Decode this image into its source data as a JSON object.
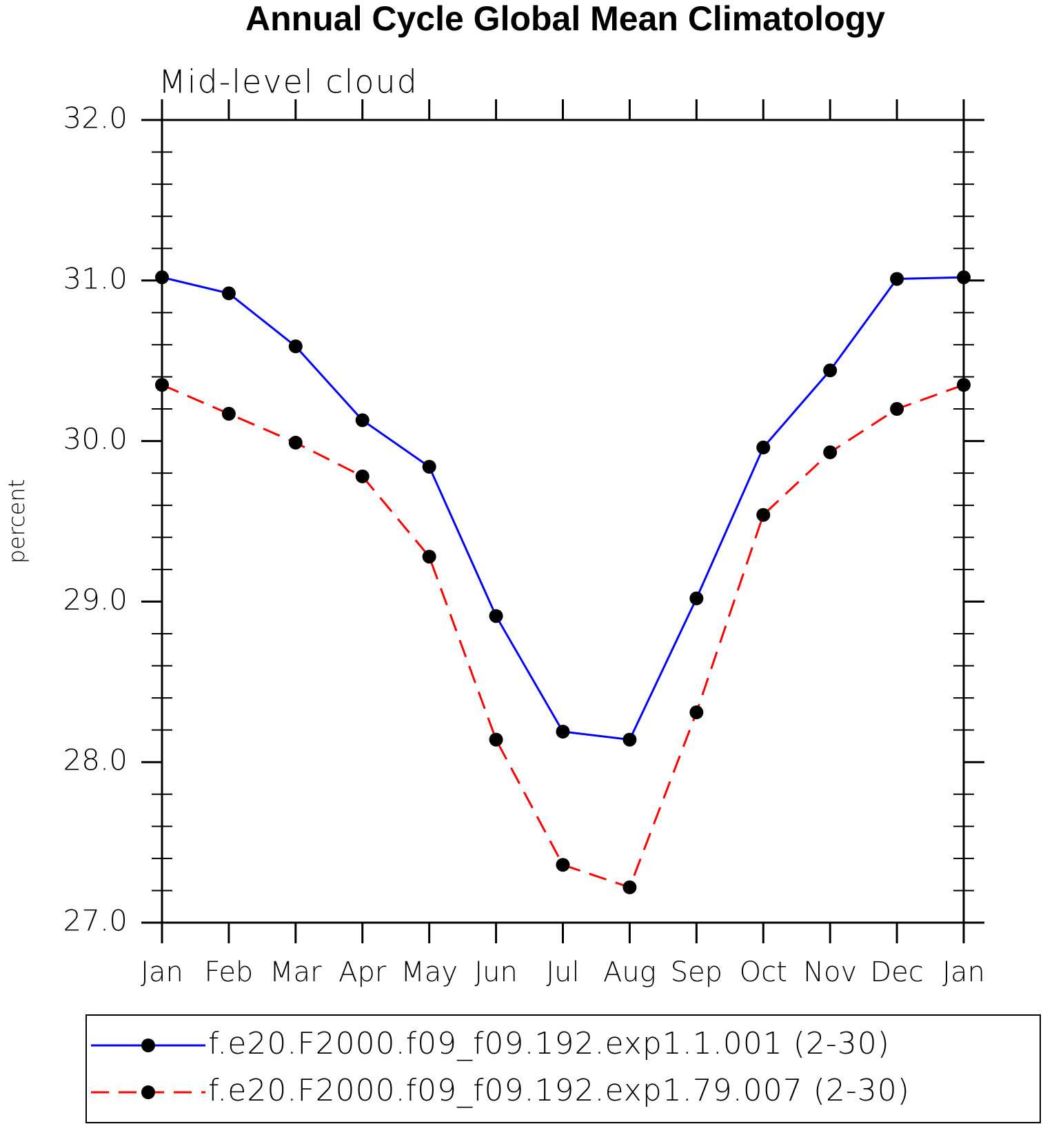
{
  "chart_data": {
    "type": "line",
    "title": "Annual Cycle Global Mean Climatology",
    "subtitle": "Mid-level cloud",
    "y_label": "percent",
    "categories": [
      "Jan",
      "Feb",
      "Mar",
      "Apr",
      "May",
      "Jun",
      "Jul",
      "Aug",
      "Sep",
      "Oct",
      "Nov",
      "Dec",
      "Jan"
    ],
    "series": [
      {
        "name": "f.e20.F2000.f09_f09.192.exp1.1.001 (2-30)",
        "color": "#0000ff",
        "dash": "solid",
        "values": [
          31.02,
          30.92,
          30.59,
          30.13,
          29.84,
          28.91,
          28.19,
          28.14,
          29.02,
          29.96,
          30.44,
          31.01,
          31.02
        ]
      },
      {
        "name": "f.e20.F2000.f09_f09.192.exp1.79.007 (2-30)",
        "color": "#ff0000",
        "dash": "dashed",
        "values": [
          30.35,
          30.17,
          29.99,
          29.78,
          29.28,
          28.14,
          27.36,
          27.22,
          28.31,
          29.54,
          29.93,
          30.2,
          30.35
        ]
      }
    ],
    "marker_color": "#000000",
    "ylim": [
      27,
      32
    ],
    "yticks": [
      {
        "value": 27,
        "label": "27.0"
      },
      {
        "value": 28,
        "label": "28.0"
      },
      {
        "value": 29,
        "label": "29.0"
      },
      {
        "value": 30,
        "label": "30.0"
      },
      {
        "value": 31,
        "label": "31.0"
      },
      {
        "value": 32,
        "label": "32.0"
      }
    ],
    "grid": false,
    "legend": "bottom"
  }
}
